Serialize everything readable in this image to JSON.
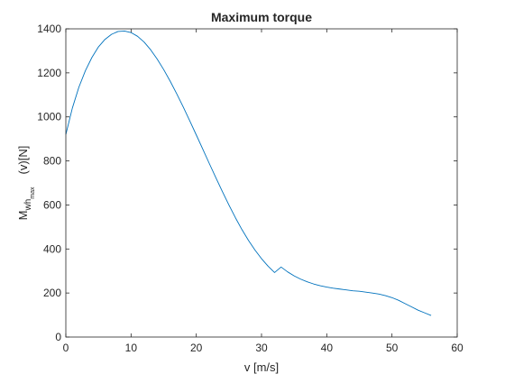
{
  "chart_data": {
    "type": "line",
    "title": "Maximum torque",
    "xlabel": "v [m/s]",
    "ylabel": {
      "prefix": "M",
      "sub": "wh",
      "subsub": "max",
      "suffix": "(v)[N]"
    },
    "xlim": [
      0,
      60
    ],
    "ylim": [
      0,
      1400
    ],
    "xticks": [
      0,
      10,
      20,
      30,
      40,
      50,
      60
    ],
    "yticks": [
      0,
      200,
      400,
      600,
      800,
      1000,
      1200,
      1400
    ],
    "grid": false,
    "box": true,
    "series": [
      {
        "color": "#0072bd",
        "x": [
          0,
          1,
          2,
          3,
          4,
          5,
          6,
          7,
          8,
          9,
          10,
          11,
          12,
          13,
          14,
          15,
          16,
          17,
          18,
          19,
          20,
          21,
          22,
          23,
          24,
          25,
          26,
          27,
          28,
          29,
          30,
          31,
          32,
          33,
          34,
          35,
          36,
          37,
          38,
          39,
          40,
          41,
          42,
          43,
          44,
          45,
          46,
          47,
          48,
          49,
          50,
          51,
          52,
          53,
          54,
          55,
          56
        ],
        "y": [
          920,
          1040,
          1135,
          1210,
          1270,
          1318,
          1352,
          1375,
          1388,
          1390,
          1383,
          1366,
          1340,
          1305,
          1263,
          1215,
          1162,
          1105,
          1045,
          982,
          918,
          853,
          788,
          724,
          661,
          600,
          542,
          488,
          439,
          395,
          356,
          322,
          293,
          318,
          296,
          278,
          263,
          251,
          241,
          233,
          227,
          222,
          218,
          214,
          210,
          208,
          204,
          200,
          195,
          188,
          179,
          167,
          152,
          137,
          122,
          110,
          98
        ]
      }
    ]
  }
}
